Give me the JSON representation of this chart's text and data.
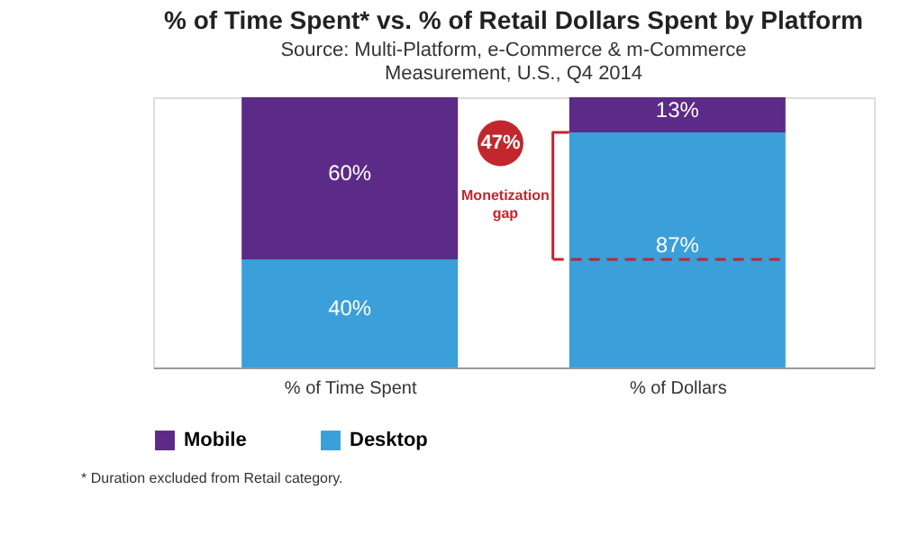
{
  "chart_data": {
    "type": "bar",
    "stacked": true,
    "title": "% of Time Spent* vs. % of Retail Dollars Spent by Platform",
    "subtitle": "Source: Multi-Platform, e-Commerce & m-Commerce Measurement, U.S., Q4 2014",
    "categories": [
      "% of Time Spent",
      "% of Dollars"
    ],
    "series": [
      {
        "name": "Desktop",
        "color": "#3b9fd9",
        "values": [
          40,
          87
        ],
        "value_labels": [
          "40%",
          "87%"
        ]
      },
      {
        "name": "Mobile",
        "color": "#5c2a87",
        "values": [
          60,
          13
        ],
        "value_labels": [
          "60%",
          "13%"
        ]
      }
    ],
    "ylim": [
      0,
      100
    ],
    "tick_labels": "x",
    "legend": "bottom",
    "grid": false,
    "ref_lines": [
      {
        "axis": "y",
        "value": 40,
        "color": "#c1272d",
        "line_style": "dashed"
      }
    ],
    "annotations": [
      "47%",
      "Monetization gap",
      "* Duration excluded from Retail category."
    ]
  }
}
